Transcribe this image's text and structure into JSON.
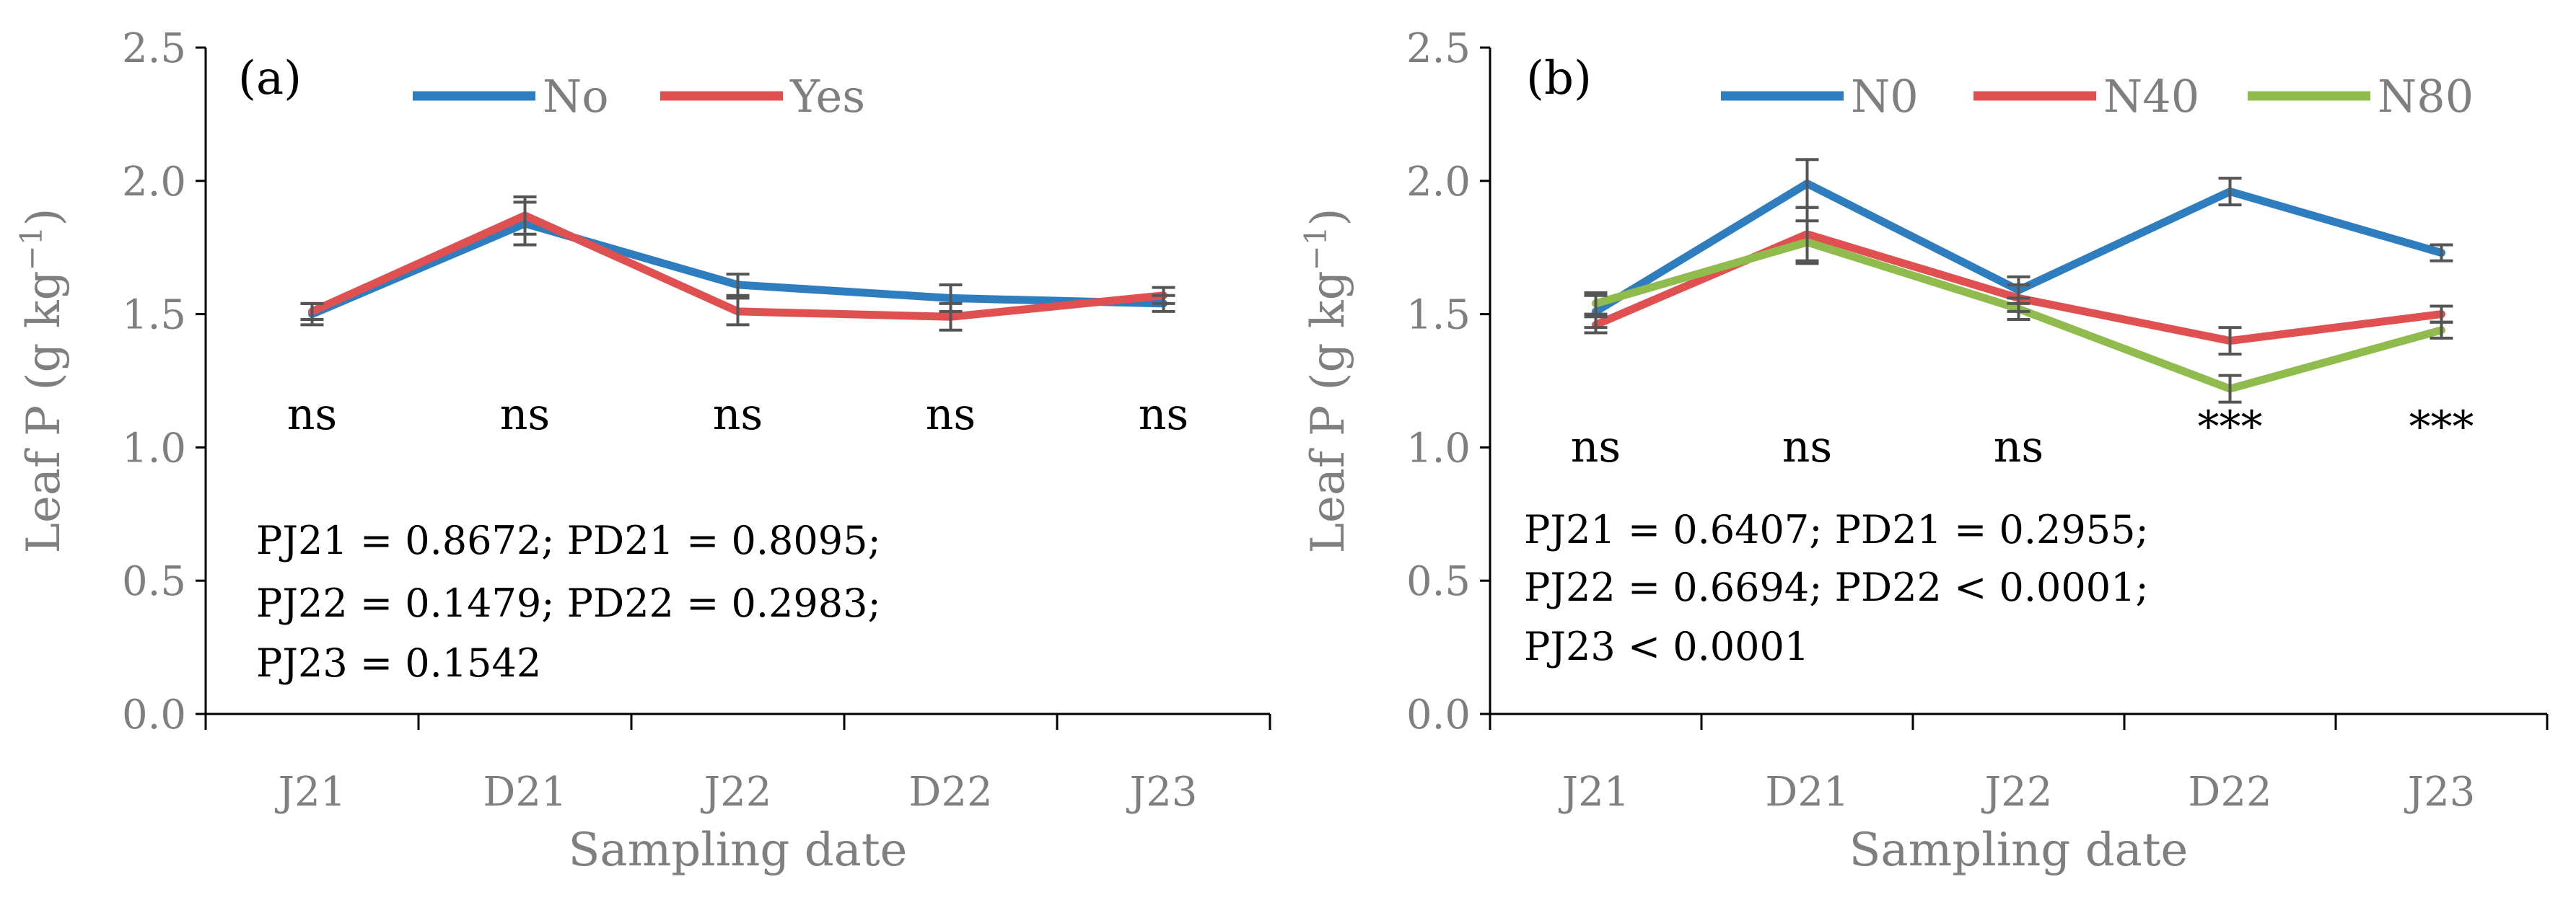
{
  "chart_data": [
    {
      "type": "line",
      "panel_label": "(a)",
      "categories": [
        "J21",
        "D21",
        "J22",
        "D22",
        "J23"
      ],
      "series": [
        {
          "name": "No",
          "color": "#2e7ebf",
          "values": [
            1.5,
            1.84,
            1.61,
            1.56,
            1.54
          ],
          "errors": [
            0.04,
            0.08,
            0.04,
            0.05,
            0.03
          ]
        },
        {
          "name": "Yes",
          "color": "#e05050",
          "values": [
            1.51,
            1.87,
            1.51,
            1.49,
            1.57
          ],
          "errors": [
            0.03,
            0.07,
            0.05,
            0.05,
            0.03
          ]
        }
      ],
      "significance": [
        "ns",
        "ns",
        "ns",
        "ns",
        "ns"
      ],
      "stats_lines": [
        "PJ21 = 0.8672; PD21 = 0.8095;",
        "PJ22 = 0.1479; PD22 = 0.2983;",
        "PJ23 = 0.1542"
      ],
      "xlabel": "Sampling date",
      "ylabel": "Leaf P (g kg",
      "ylabel_sup": "−1",
      "ylabel_end": ")",
      "ylim": [
        0,
        2.5
      ],
      "yticks": [
        "0.0",
        "0.5",
        "1.0",
        "1.5",
        "2.0",
        "2.5"
      ],
      "legend_position": "top"
    },
    {
      "type": "line",
      "panel_label": "(b)",
      "categories": [
        "J21",
        "D21",
        "J22",
        "D22",
        "J23"
      ],
      "series": [
        {
          "name": "N0",
          "color": "#2e7ebf",
          "values": [
            1.51,
            1.99,
            1.59,
            1.96,
            1.73
          ],
          "errors": [
            0.06,
            0.09,
            0.05,
            0.05,
            0.03
          ]
        },
        {
          "name": "N40",
          "color": "#e05050",
          "values": [
            1.46,
            1.8,
            1.56,
            1.4,
            1.5
          ],
          "errors": [
            0.03,
            0.1,
            0.05,
            0.05,
            0.03
          ]
        },
        {
          "name": "N80",
          "color": "#8fbc4c",
          "values": [
            1.54,
            1.77,
            1.52,
            1.22,
            1.44
          ],
          "errors": [
            0.04,
            0.08,
            0.04,
            0.05,
            0.03
          ]
        }
      ],
      "significance": [
        "ns",
        "ns",
        "ns",
        "***",
        "***"
      ],
      "stats_lines": [
        "PJ21 = 0.6407; PD21 = 0.2955;",
        "PJ22 = 0.6694; PD22 < 0.0001;",
        "PJ23 < 0.0001"
      ],
      "xlabel": "Sampling date",
      "ylabel": "Leaf P (g kg",
      "ylabel_sup": "−1",
      "ylabel_end": ")",
      "ylim": [
        0,
        2.5
      ],
      "yticks": [
        "0.0",
        "0.5",
        "1.0",
        "1.5",
        "2.0",
        "2.5"
      ],
      "legend_position": "top"
    }
  ]
}
